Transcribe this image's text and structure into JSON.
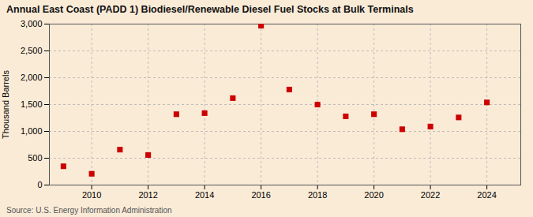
{
  "chart_data": {
    "type": "scatter",
    "title": "Annual East Coast (PADD 1) Biodiesel/Renewable Diesel Fuel Stocks at Bulk Terminals",
    "ylabel": "Thousand Barrels",
    "source": "Source: U.S. Energy Information Administration",
    "x": [
      2009,
      2010,
      2011,
      2012,
      2013,
      2014,
      2015,
      2016,
      2017,
      2018,
      2019,
      2020,
      2021,
      2022,
      2023,
      2024
    ],
    "values": [
      350,
      210,
      660,
      560,
      1320,
      1340,
      1620,
      2970,
      1780,
      1500,
      1280,
      1320,
      1040,
      1090,
      1260,
      1540
    ],
    "color": "#cc0000",
    "marker": "square",
    "xlim": [
      2008.5,
      2025.2
    ],
    "xticks": [
      2010,
      2012,
      2014,
      2016,
      2018,
      2020,
      2022,
      2024
    ],
    "ylim": [
      0,
      3000
    ],
    "yticks": [
      0,
      500,
      {
        "value": 1000,
        "label": "1,000"
      },
      {
        "value": 1500,
        "label": "1,500"
      },
      {
        "value": 2000,
        "label": "2,000"
      },
      {
        "value": 2500,
        "label": "2,500"
      },
      {
        "value": 3000,
        "label": "3,000"
      }
    ],
    "grid": true
  }
}
